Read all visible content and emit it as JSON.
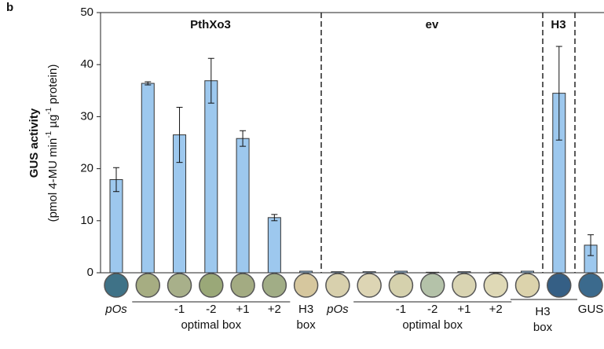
{
  "chart_data": {
    "type": "bar",
    "panel_label": "b",
    "ylabel": "GUS activity",
    "ylabel_units": [
      "(pmol 4-MU min",
      "-1",
      " µg",
      "-1",
      " protein)"
    ],
    "group_labels": [
      "PthXo3",
      "ev",
      "H3"
    ],
    "categories": [
      "pOs",
      null,
      "-1",
      "-2",
      "+1",
      "+2",
      "H3 box",
      "pOs",
      null,
      "-1",
      "-2",
      "+1",
      "+2",
      null,
      null,
      "GUS"
    ],
    "sub_labels": [
      "optimal box",
      "optimal box",
      "H3 box"
    ],
    "values": [
      17.9,
      36.4,
      26.5,
      36.9,
      25.8,
      10.6,
      0.3,
      0.2,
      0.2,
      0.3,
      0.1,
      0.2,
      0.1,
      0.3,
      34.5,
      5.3
    ],
    "errors": [
      2.3,
      0.3,
      5.3,
      4.3,
      1.5,
      0.6,
      null,
      null,
      null,
      null,
      null,
      null,
      null,
      null,
      9,
      2
    ],
    "color": "#9dc8ee",
    "ylim": [
      0,
      50
    ],
    "yticks": [
      0,
      10,
      20,
      30,
      40,
      50
    ]
  }
}
